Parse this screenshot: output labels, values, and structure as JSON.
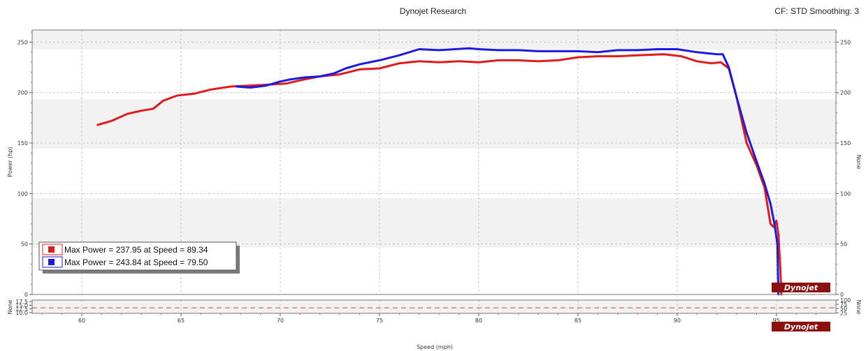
{
  "header": {
    "title": "Dynojet Research",
    "right": "CF: STD Smoothing: 3"
  },
  "logo_text": "Dynojet",
  "chart_data": [
    {
      "type": "line",
      "xlabel": "Speed (mph)",
      "ylabel": "Power (hp)",
      "ylabel_right": "None",
      "xlim": [
        57.5,
        98
      ],
      "ylim": [
        0,
        262
      ],
      "x_ticks": [
        "60",
        "65",
        "70",
        "75",
        "80",
        "85",
        "90",
        "95"
      ],
      "y_ticks": [
        "0",
        "50",
        "100",
        "150",
        "200",
        "250"
      ],
      "y_ticks_right": [
        "0",
        "50",
        "100",
        "150",
        "200",
        "250"
      ],
      "grid": true,
      "legend": {
        "placement": "bottom-left",
        "entries": [
          "Max Power = 237.95 at Speed = 89.34",
          "Max Power = 243.84 at Speed = 79.50"
        ]
      },
      "series": [
        {
          "color": "#e01b1b",
          "x": [
            60.8,
            61.5,
            62.3,
            63.0,
            63.6,
            64.1,
            64.8,
            65.7,
            66.5,
            67.5,
            68.5,
            69.5,
            70.3,
            71.2,
            72.0,
            73.0,
            74.0,
            75.0,
            76.0,
            77.0,
            78.0,
            79.0,
            80.0,
            81.0,
            82.0,
            83.0,
            84.0,
            85.0,
            86.0,
            87.0,
            88.0,
            89.34,
            90.2,
            91.0,
            91.7,
            92.2,
            92.6,
            93.0,
            93.5,
            94.0,
            94.4,
            94.7,
            94.85,
            95.0,
            95.1,
            95.2,
            95.25
          ],
          "y": [
            168,
            172,
            179,
            182,
            184,
            192,
            197,
            199,
            203,
            206,
            207,
            208,
            209,
            213,
            216,
            218,
            223,
            224,
            229,
            231,
            230,
            231,
            230,
            232,
            232,
            231,
            232,
            235,
            236,
            236,
            237,
            237.95,
            236,
            231,
            229,
            230,
            224,
            195,
            150,
            128,
            106,
            70,
            67,
            73,
            59,
            25,
            0
          ]
        },
        {
          "color": "#1a1ae0",
          "x": [
            67.8,
            68.5,
            69.3,
            70.0,
            70.5,
            71.2,
            72.0,
            72.7,
            73.3,
            74.0,
            75.0,
            76.0,
            77.0,
            78.0,
            79.5,
            80.0,
            81.0,
            82.0,
            83.0,
            84.0,
            85.0,
            86.0,
            87.0,
            88.0,
            89.0,
            90.0,
            91.0,
            92.0,
            92.3,
            92.6,
            93.0,
            93.5,
            94.0,
            94.4,
            94.7,
            94.9,
            95.05,
            95.1
          ],
          "y": [
            206,
            205,
            207,
            211,
            213,
            215,
            216,
            219,
            224,
            228,
            232,
            237,
            243,
            242,
            243.84,
            243,
            242,
            242,
            241,
            241,
            241,
            240,
            242,
            242,
            243,
            243,
            240,
            238,
            238,
            225,
            195,
            160,
            132,
            110,
            90,
            70,
            50,
            0
          ]
        }
      ]
    },
    {
      "type": "line",
      "ylabel": "None",
      "ylabel_right": "None",
      "ylim": [
        9.5,
        18.5
      ],
      "ylim_right": [
        22,
        100
      ],
      "y_ticks": [
        "10.0",
        "12.5",
        "15.0",
        "17.5"
      ],
      "y_ticks_right": [
        "25",
        "50",
        "75",
        "100"
      ],
      "series": [
        {
          "color": "#e05050",
          "style": "dashed",
          "y": [
            13.2
          ]
        }
      ]
    }
  ]
}
